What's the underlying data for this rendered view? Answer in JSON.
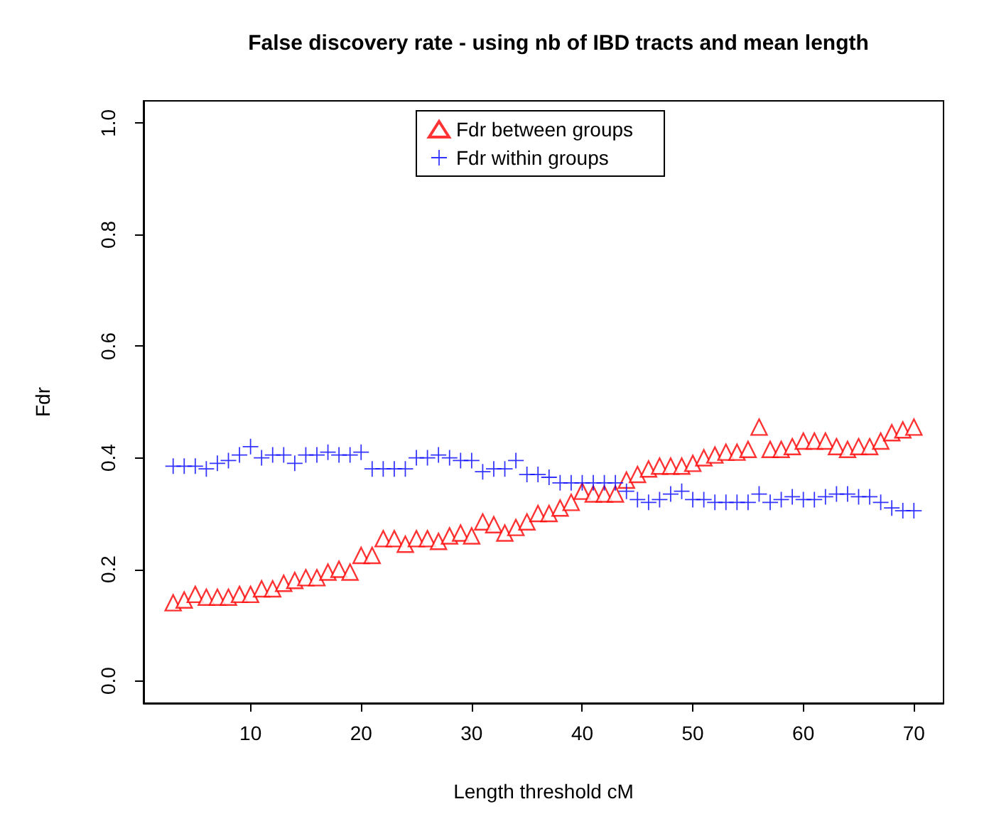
{
  "chart_data": {
    "type": "scatter",
    "title": "False discovery rate - using nb of IBD tracts and mean length",
    "xlabel": "Length threshold cM",
    "ylabel": "Fdr",
    "x": [
      3,
      4,
      5,
      6,
      7,
      8,
      9,
      10,
      11,
      12,
      13,
      14,
      15,
      16,
      17,
      18,
      19,
      20,
      21,
      22,
      23,
      24,
      25,
      26,
      27,
      28,
      29,
      30,
      31,
      32,
      33,
      34,
      35,
      36,
      37,
      38,
      39,
      40,
      41,
      42,
      43,
      44,
      45,
      46,
      47,
      48,
      49,
      50,
      51,
      52,
      53,
      54,
      55,
      56,
      57,
      58,
      59,
      60,
      61,
      62,
      63,
      64,
      65,
      66,
      67,
      68,
      69,
      70
    ],
    "series": [
      {
        "name": "Fdr between groups",
        "color": "#ff0000",
        "marker": "triangle",
        "values": [
          0.14,
          0.145,
          0.155,
          0.15,
          0.15,
          0.15,
          0.155,
          0.155,
          0.165,
          0.165,
          0.175,
          0.18,
          0.185,
          0.185,
          0.195,
          0.2,
          0.195,
          0.225,
          0.225,
          0.255,
          0.255,
          0.245,
          0.255,
          0.255,
          0.25,
          0.26,
          0.265,
          0.26,
          0.285,
          0.28,
          0.265,
          0.275,
          0.285,
          0.3,
          0.3,
          0.31,
          0.32,
          0.34,
          0.335,
          0.335,
          0.335,
          0.36,
          0.37,
          0.38,
          0.385,
          0.385,
          0.385,
          0.39,
          0.4,
          0.405,
          0.41,
          0.41,
          0.415,
          0.455,
          0.415,
          0.415,
          0.42,
          0.43,
          0.43,
          0.43,
          0.42,
          0.415,
          0.42,
          0.42,
          0.43,
          0.445,
          0.45,
          0.455
        ]
      },
      {
        "name": "Fdr within groups",
        "color": "#0000ff",
        "marker": "cross",
        "values": [
          0.385,
          0.385,
          0.385,
          0.38,
          0.39,
          0.395,
          0.405,
          0.42,
          0.4,
          0.405,
          0.405,
          0.39,
          0.405,
          0.405,
          0.41,
          0.405,
          0.405,
          0.41,
          0.38,
          0.38,
          0.38,
          0.38,
          0.4,
          0.4,
          0.405,
          0.4,
          0.395,
          0.395,
          0.375,
          0.38,
          0.38,
          0.395,
          0.37,
          0.37,
          0.365,
          0.355,
          0.355,
          0.355,
          0.355,
          0.355,
          0.355,
          0.34,
          0.325,
          0.32,
          0.325,
          0.335,
          0.34,
          0.325,
          0.325,
          0.32,
          0.32,
          0.32,
          0.32,
          0.335,
          0.32,
          0.325,
          0.33,
          0.325,
          0.325,
          0.33,
          0.335,
          0.335,
          0.33,
          0.33,
          0.32,
          0.31,
          0.305,
          0.305
        ]
      }
    ],
    "xlim": [
      0.32,
      72.68
    ],
    "xticks": [
      10,
      20,
      30,
      40,
      50,
      60,
      70
    ],
    "ylim": [
      -0.04,
      1.04
    ],
    "yticks": [
      {
        "value": 0,
        "label": "0.0"
      },
      {
        "value": 0.2,
        "label": "0.2"
      },
      {
        "value": 0.4,
        "label": "0.4"
      },
      {
        "value": 0.6,
        "label": "0.6"
      },
      {
        "value": 0.8,
        "label": "0.8"
      },
      {
        "value": 1,
        "label": "1.0"
      }
    ],
    "grid": false,
    "legend": "top"
  }
}
